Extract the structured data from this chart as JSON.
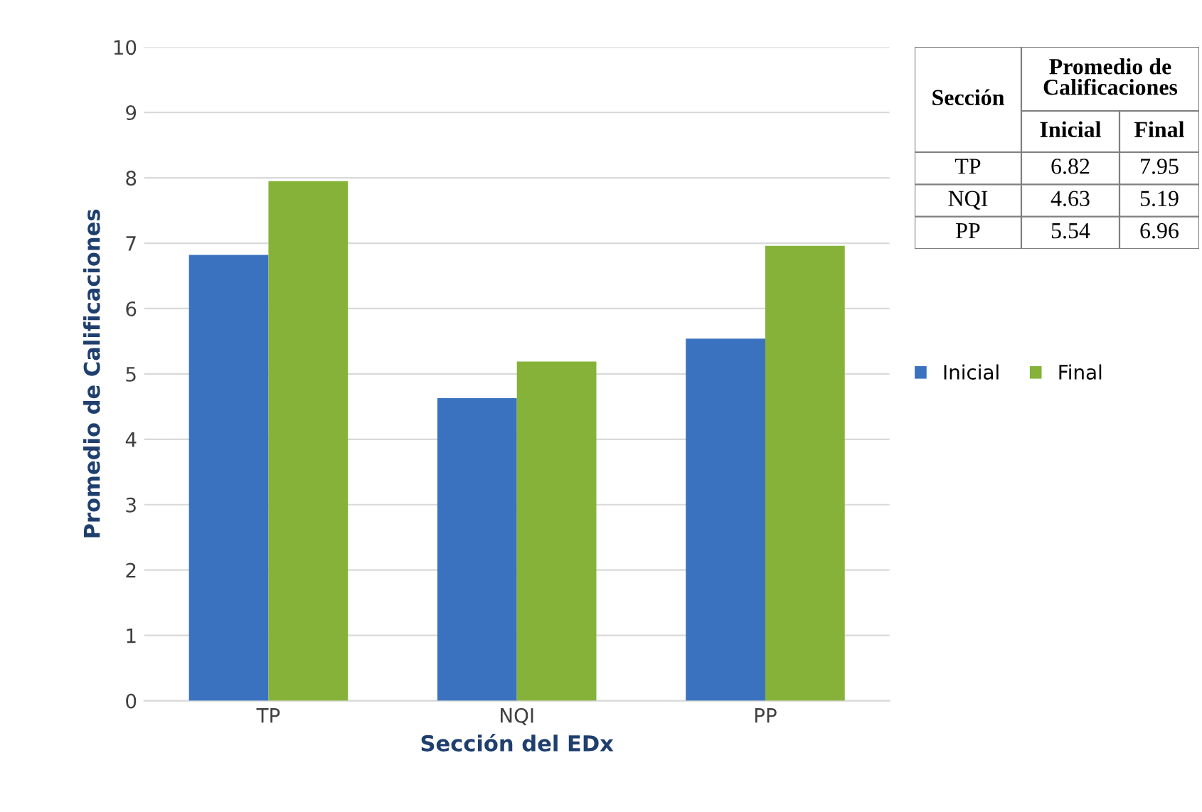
{
  "chart_data": {
    "type": "bar",
    "xlabel": "Sección del EDx",
    "ylabel": "Promedio de Calificaciones",
    "categories": [
      "TP",
      "NQI",
      "PP"
    ],
    "series": [
      {
        "name": "Inicial",
        "color": "#3a72c0",
        "values": [
          6.82,
          4.63,
          5.54
        ]
      },
      {
        "name": "Final",
        "color": "#86b23a",
        "values": [
          7.95,
          5.19,
          6.96
        ]
      }
    ],
    "ylim": [
      0,
      10
    ],
    "yticks": [
      0,
      1,
      2,
      3,
      4,
      5,
      6,
      7,
      8,
      9,
      10
    ],
    "grid": "y",
    "legend": "right",
    "annotations": [
      "Sección",
      "Promedio de Calificaciones",
      "6.82",
      "7.95",
      "4.63",
      "5.19",
      "5.54",
      "6.96"
    ]
  }
}
